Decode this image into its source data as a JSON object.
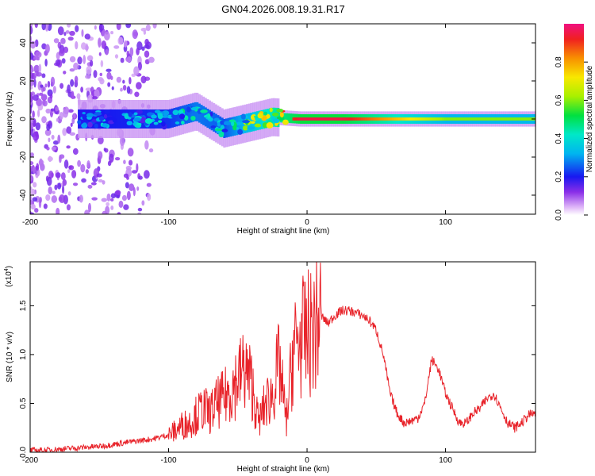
{
  "title": "GN04.2026.008.19.31.R17",
  "chart_data": [
    {
      "type": "heatmap",
      "xlabel": "Height of straight line (km)",
      "ylabel": "Frequency (Hz)",
      "xlim": [
        -200,
        165
      ],
      "ylim": [
        -50,
        50
      ],
      "xticks": [
        -200,
        -100,
        0,
        100
      ],
      "yticks": [
        -40,
        -20,
        0,
        20,
        40
      ],
      "colorbar": {
        "label": "Normalized spectral amplitude",
        "range": [
          0.0,
          1.0
        ],
        "ticks": [
          "0.0",
          "0.2",
          "0.4",
          "0.6",
          "0.8"
        ]
      },
      "description_points": [
        {
          "x": -165,
          "y": 0,
          "amplitude": 0.35
        },
        {
          "x": -100,
          "y": 0,
          "amplitude": 0.4
        },
        {
          "x": -80,
          "y": 4,
          "amplitude": 0.5
        },
        {
          "x": -60,
          "y": -5,
          "amplitude": 0.45
        },
        {
          "x": -25,
          "y": 1,
          "amplitude": 0.8
        },
        {
          "x": -5,
          "y": 0,
          "amplitude": 0.95
        },
        {
          "x": 10,
          "y": 0,
          "amplitude": 0.95
        },
        {
          "x": 25,
          "y": 0,
          "amplitude": 0.95
        },
        {
          "x": 100,
          "y": 0,
          "amplitude": 0.6
        },
        {
          "x": 160,
          "y": 0,
          "amplitude": 0.6
        }
      ]
    },
    {
      "type": "line",
      "xlabel": "Height of straight line (km)",
      "ylabel": "SNR (10 * v/v)",
      "yscale_label": "(x10",
      "yscale_exp": "4",
      "xlim": [
        -200,
        165
      ],
      "ylim": [
        0,
        1.95
      ],
      "xticks": [
        -200,
        -100,
        0,
        100
      ],
      "yticks": [
        "0.0",
        "0.5",
        "1.0",
        "1.5"
      ],
      "series": [
        {
          "color": "#e8232a",
          "x": [
            -200,
            -190,
            -180,
            -170,
            -160,
            -150,
            -140,
            -130,
            -120,
            -110,
            -100,
            -95,
            -90,
            -85,
            -80,
            -75,
            -70,
            -65,
            -60,
            -55,
            -50,
            -45,
            -40,
            -35,
            -30,
            -25,
            -20,
            -15,
            -10,
            -5,
            0,
            5,
            10,
            15,
            20,
            25,
            30,
            35,
            40,
            45,
            50,
            55,
            60,
            65,
            70,
            75,
            80,
            85,
            90,
            95,
            100,
            105,
            110,
            115,
            120,
            125,
            130,
            135,
            140,
            145,
            150,
            155,
            160,
            165
          ],
          "y": [
            0.02,
            0.02,
            0.03,
            0.04,
            0.05,
            0.06,
            0.08,
            0.1,
            0.12,
            0.14,
            0.18,
            0.22,
            0.28,
            0.3,
            0.38,
            0.45,
            0.4,
            0.5,
            0.55,
            0.65,
            0.75,
            0.85,
            0.7,
            0.3,
            0.5,
            0.6,
            0.9,
            0.3,
            1.05,
            1.15,
            1.2,
            1.25,
            1.4,
            1.32,
            1.4,
            1.45,
            1.45,
            1.43,
            1.4,
            1.35,
            1.25,
            1.0,
            0.6,
            0.4,
            0.3,
            0.32,
            0.35,
            0.5,
            0.95,
            0.85,
            0.6,
            0.45,
            0.3,
            0.3,
            0.4,
            0.45,
            0.55,
            0.6,
            0.45,
            0.3,
            0.25,
            0.3,
            0.38,
            0.4
          ]
        }
      ]
    }
  ],
  "colors": {
    "line": "#e8232a",
    "axis": "#000000"
  }
}
